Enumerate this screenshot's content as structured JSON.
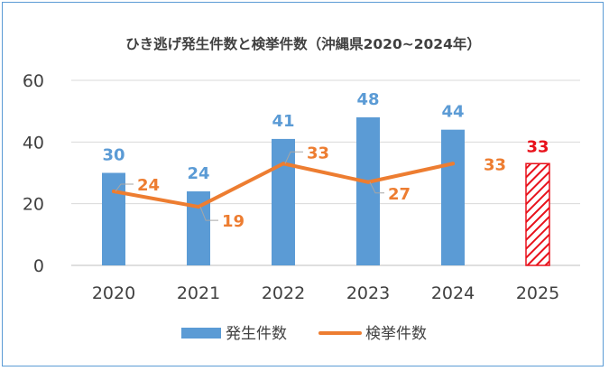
{
  "chart_data": {
    "type": "bar",
    "title": "ひき逃げ発生件数と検挙件数（沖縄県2020~2024年）",
    "categories": [
      "2020",
      "2021",
      "2022",
      "2023",
      "2024",
      "2025"
    ],
    "ylim": [
      0,
      60
    ],
    "yticks": [
      0,
      20,
      40,
      60
    ],
    "grid": true,
    "legend_position": "bottom",
    "series": [
      {
        "name": "発生件数",
        "type": "bar",
        "color": "#5b9bd5",
        "values": [
          30,
          24,
          41,
          48,
          44,
          null
        ],
        "labels": [
          "30",
          "24",
          "41",
          "48",
          "44",
          ""
        ]
      },
      {
        "name": "検挙件数",
        "type": "line",
        "color": "#ed7d31",
        "values": [
          24,
          19,
          33,
          27,
          33,
          null
        ],
        "labels": [
          "24",
          "19",
          "33",
          "27",
          "33",
          ""
        ]
      }
    ],
    "highlight": {
      "category": "2025",
      "value": 33,
      "label": "33",
      "color": "#e8111b",
      "style": "hatched"
    }
  }
}
